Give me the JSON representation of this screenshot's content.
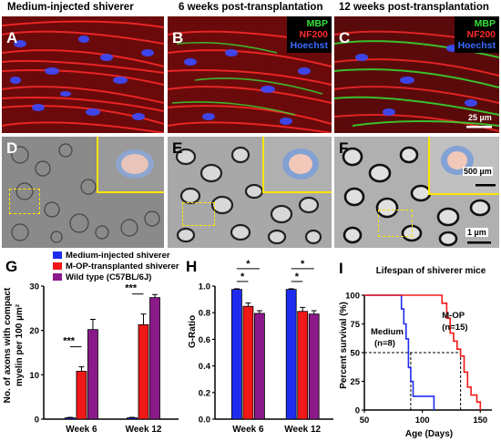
{
  "headers": {
    "col1": "Medium-injected shiverer",
    "col2": "6 weeks post-transplantation",
    "col3": "12 weeks post-transplantation"
  },
  "panel_labels": {
    "A": "A",
    "B": "B",
    "C": "C",
    "D": "D",
    "E": "E",
    "F": "F",
    "G": "G",
    "H": "H",
    "I": "I"
  },
  "stain_legend": {
    "mbp": "MBP",
    "nf200": "NF200",
    "hoechst": "Hoechst"
  },
  "scale_bars": {
    "fluor": "25 µm",
    "inset": "500 µm",
    "em": "1 µm"
  },
  "colors": {
    "medium": "#1f2cf0",
    "mop": "#f01818",
    "wt": "#8a1a8a",
    "mbp": "#34e034",
    "nf200": "#ff2a2a",
    "hoechst": "#3a6bff",
    "dashbox": "#ffe600"
  },
  "legend": {
    "items": [
      {
        "label": "Medium-injected shiverer",
        "color": "#1f2cf0"
      },
      {
        "label": "M-OP-transplanted shiverer",
        "color": "#f01818"
      },
      {
        "label": "Wild type (C57BL/6J)",
        "color": "#8a1a8a"
      }
    ]
  },
  "chart_data": [
    {
      "id": "G",
      "type": "bar",
      "categories": [
        "Week 6",
        "Week 12"
      ],
      "series": [
        {
          "name": "Medium-injected shiverer",
          "values": [
            0.3,
            0.3
          ],
          "errors": [
            0.1,
            0.1
          ]
        },
        {
          "name": "M-OP-transplanted shiverer",
          "values": [
            10.8,
            21.3
          ],
          "errors": [
            1.0,
            2.4
          ]
        },
        {
          "name": "Wild type (C57BL/6J)",
          "values": [
            20.2,
            27.4
          ],
          "errors": [
            2.3,
            0.7
          ]
        }
      ],
      "ylabel_line1": "No. of axons with compact",
      "ylabel_line2": "myelin per 100 µm²",
      "ylim": [
        0,
        30
      ],
      "yticks": [
        "0",
        "10",
        "20",
        "30"
      ],
      "annotations": [
        "***",
        "***"
      ]
    },
    {
      "id": "H",
      "type": "bar",
      "categories": [
        "Week 6",
        "Week 12"
      ],
      "series": [
        {
          "name": "Medium-injected shiverer",
          "values": [
            0.975,
            0.975
          ],
          "errors": [
            0.005,
            0.005
          ]
        },
        {
          "name": "M-OP-transplanted shiverer",
          "values": [
            0.848,
            0.81
          ],
          "errors": [
            0.025,
            0.03
          ]
        },
        {
          "name": "Wild type (C57BL/6J)",
          "values": [
            0.795,
            0.79
          ],
          "errors": [
            0.02,
            0.025
          ]
        }
      ],
      "ylabel": "G-Ratio",
      "ylim": [
        0,
        1.0
      ],
      "yticks": [
        "0.0",
        "0.2",
        "0.4",
        "0.6",
        "0.8",
        "1.0"
      ],
      "annotations": [
        "*",
        "*",
        "*",
        "*"
      ]
    },
    {
      "id": "I",
      "type": "line",
      "title": "Lifespan of shiverer mice",
      "xlabel": "Age (Days)",
      "ylabel": "Percent survival (%)",
      "xlim": [
        50,
        160
      ],
      "ylim": [
        0,
        100
      ],
      "xticks": [
        "50",
        "100",
        "150"
      ],
      "yticks": [
        "0",
        "25",
        "50",
        "75",
        "100"
      ],
      "series": [
        {
          "name": "Medium",
          "n_label": "(n=8)",
          "color": "#1f2cf0",
          "steps": [
            [
              50,
              100
            ],
            [
              82,
              100
            ],
            [
              82,
              88
            ],
            [
              84,
              88
            ],
            [
              84,
              75
            ],
            [
              86,
              75
            ],
            [
              86,
              62
            ],
            [
              88,
              62
            ],
            [
              88,
              37
            ],
            [
              90,
              37
            ],
            [
              90,
              25
            ],
            [
              92,
              25
            ],
            [
              92,
              12
            ],
            [
              110,
              12
            ],
            [
              110,
              0
            ]
          ]
        },
        {
          "name": "M-OP",
          "n_label": "(n=15)",
          "color": "#f01818",
          "steps": [
            [
              50,
              100
            ],
            [
              117,
              100
            ],
            [
              117,
              93
            ],
            [
              121,
              93
            ],
            [
              121,
              80
            ],
            [
              124,
              80
            ],
            [
              124,
              67
            ],
            [
              127,
              67
            ],
            [
              127,
              60
            ],
            [
              130,
              60
            ],
            [
              130,
              53
            ],
            [
              133,
              53
            ],
            [
              133,
              47
            ],
            [
              136,
              47
            ],
            [
              136,
              33
            ],
            [
              139,
              33
            ],
            [
              139,
              20
            ],
            [
              142,
              20
            ],
            [
              142,
              13
            ],
            [
              147,
              13
            ],
            [
              147,
              7
            ],
            [
              150,
              7
            ],
            [
              150,
              0
            ]
          ]
        }
      ],
      "median_lines": [
        90,
        133
      ]
    }
  ]
}
